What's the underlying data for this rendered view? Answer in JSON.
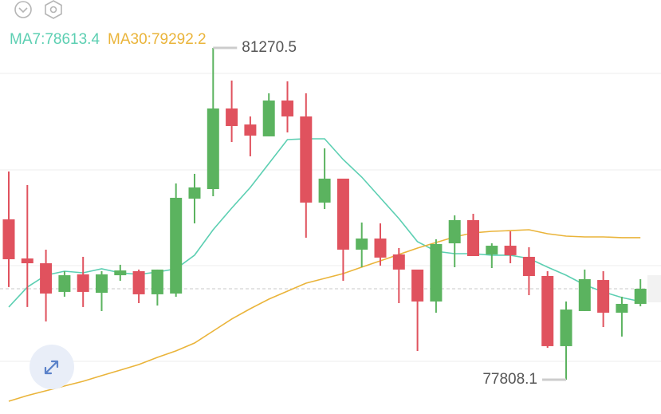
{
  "chart_data": {
    "type": "candlestick",
    "ylim": [
      77450,
      81770
    ],
    "up_color": "#5bb35f",
    "down_color": "#e0525e",
    "candles": [
      {
        "open": 79481,
        "high": 79980,
        "low": 78774,
        "close": 79065
      },
      {
        "open": 79073,
        "high": 79839,
        "low": 78566,
        "close": 79023
      },
      {
        "open": 79023,
        "high": 79165,
        "low": 78416,
        "close": 78707
      },
      {
        "open": 78724,
        "high": 78940,
        "low": 78674,
        "close": 78898
      },
      {
        "open": 78907,
        "high": 79090,
        "low": 78566,
        "close": 78724
      },
      {
        "open": 78715,
        "high": 78940,
        "low": 78524,
        "close": 78907
      },
      {
        "open": 78898,
        "high": 79007,
        "low": 78840,
        "close": 78948
      },
      {
        "open": 78940,
        "high": 78957,
        "low": 78607,
        "close": 78699
      },
      {
        "open": 78699,
        "high": 78957,
        "low": 78582,
        "close": 78957
      },
      {
        "open": 78707,
        "high": 79856,
        "low": 78674,
        "close": 79706
      },
      {
        "open": 79697,
        "high": 79956,
        "low": 79439,
        "close": 79814
      },
      {
        "open": 79797,
        "high": 81270.5,
        "low": 79722,
        "close": 80638
      },
      {
        "open": 80638,
        "high": 80929,
        "low": 80288,
        "close": 80455
      },
      {
        "open": 80471,
        "high": 80555,
        "low": 80139,
        "close": 80355
      },
      {
        "open": 80347,
        "high": 80796,
        "low": 80347,
        "close": 80721
      },
      {
        "open": 80721,
        "high": 80921,
        "low": 80388,
        "close": 80555
      },
      {
        "open": 80555,
        "high": 80796,
        "low": 79290,
        "close": 79656
      },
      {
        "open": 79656,
        "high": 80222,
        "low": 79589,
        "close": 79906
      },
      {
        "open": 79906,
        "high": 79906,
        "low": 78840,
        "close": 79165
      },
      {
        "open": 79165,
        "high": 79448,
        "low": 78982,
        "close": 79281
      },
      {
        "open": 79281,
        "high": 79439,
        "low": 78998,
        "close": 79082
      },
      {
        "open": 79115,
        "high": 79181,
        "low": 78607,
        "close": 78957
      },
      {
        "open": 78957,
        "high": 78957,
        "low": 78108,
        "close": 78624
      },
      {
        "open": 78624,
        "high": 79273,
        "low": 78507,
        "close": 79223
      },
      {
        "open": 79231,
        "high": 79523,
        "low": 78982,
        "close": 79473
      },
      {
        "open": 79473,
        "high": 79539,
        "low": 79098,
        "close": 79098
      },
      {
        "open": 79115,
        "high": 79231,
        "low": 78973,
        "close": 79206
      },
      {
        "open": 79206,
        "high": 79356,
        "low": 79023,
        "close": 79107
      },
      {
        "open": 79090,
        "high": 79190,
        "low": 78690,
        "close": 78890
      },
      {
        "open": 78890,
        "high": 78940,
        "low": 78141,
        "close": 78158
      },
      {
        "open": 78158,
        "high": 78624,
        "low": 77808.1,
        "close": 78540
      },
      {
        "open": 78524,
        "high": 78957,
        "low": 78524,
        "close": 78857
      },
      {
        "open": 78848,
        "high": 78940,
        "low": 78357,
        "close": 78507
      },
      {
        "open": 78507,
        "high": 78674,
        "low": 78258,
        "close": 78599
      },
      {
        "open": 78599,
        "high": 78857,
        "low": 78574,
        "close": 78757
      }
    ],
    "series": [
      {
        "name": "MA7:78613.4",
        "color": "#5ccfb2",
        "values": [
          78566,
          78774,
          78898,
          78940,
          78923,
          78965,
          78923,
          78907,
          78932,
          78965,
          79107,
          79373,
          79598,
          79814,
          80064,
          80313,
          80322,
          80322,
          80105,
          79922,
          79706,
          79489,
          79248,
          79148,
          79123,
          79123,
          79107,
          79107,
          79073,
          78982,
          78898,
          78798,
          78724,
          78665,
          78624
        ]
      },
      {
        "name": "MA30:79292.2",
        "color": "#eab43a",
        "values": [
          77583,
          77642,
          77692,
          77742,
          77791,
          77850,
          77908,
          77966,
          78041,
          78108,
          78191,
          78316,
          78441,
          78549,
          78649,
          78732,
          78815,
          78865,
          78915,
          78982,
          79048,
          79115,
          79181,
          79240,
          79298,
          79340,
          79356,
          79364,
          79373,
          79331,
          79306,
          79298,
          79298,
          79290,
          79290
        ]
      }
    ],
    "max_label": "81270.5",
    "min_label": "77808.1"
  }
}
